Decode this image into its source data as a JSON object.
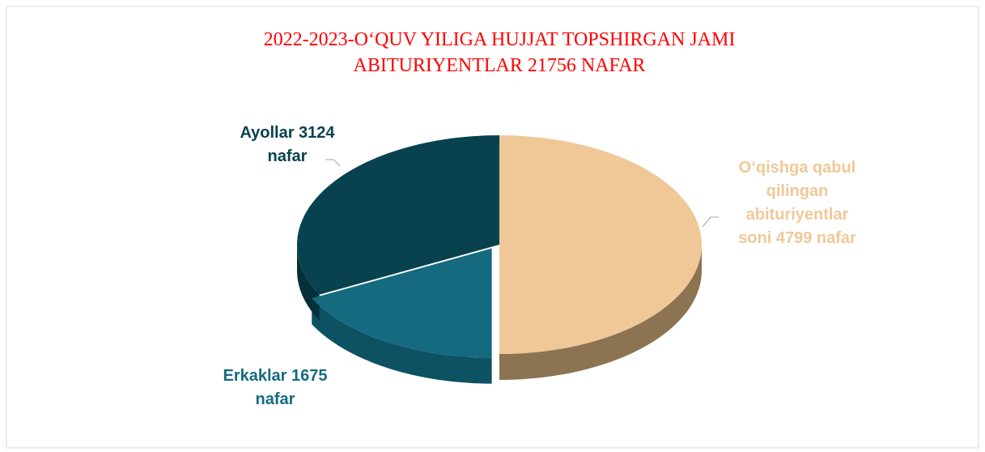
{
  "chart_data": {
    "type": "pie3d",
    "title_lines": [
      "2022-2023-O‘QUV YILIGA HUJJAT TOPSHIRGAN JAMI",
      "ABITURIYENTLAR 21756 NAFAR"
    ],
    "values": [
      4799,
      1675,
      3124
    ],
    "value_labels": [
      [
        "O‘qishga qabul",
        "qilingan",
        "abituriyentlar",
        "soni 4799 nafar"
      ],
      [
        "Erkaklar 1675",
        "nafar"
      ],
      [
        "Ayollar 3124",
        "nafar"
      ]
    ],
    "colors": [
      "#f0c898",
      "#156a80",
      "#08424f"
    ],
    "side_colors": [
      "#8c7352",
      "#0d5263",
      "#04303a"
    ],
    "exploded": [
      false,
      true,
      false
    ]
  }
}
